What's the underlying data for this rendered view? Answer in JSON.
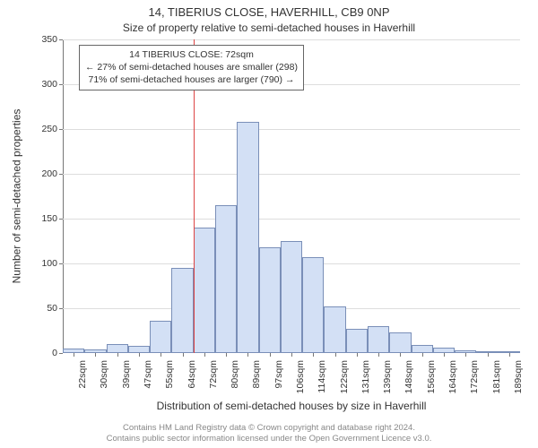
{
  "title_main": "14, TIBERIUS CLOSE, HAVERHILL, CB9 0NP",
  "title_sub": "Size of property relative to semi-detached houses in Haverhill",
  "y_axis_title": "Number of semi-detached properties",
  "x_axis_title": "Distribution of semi-detached houses by size in Haverhill",
  "footer_line1": "Contains HM Land Registry data © Crown copyright and database right 2024.",
  "footer_line2": "Contains public sector information licensed under the Open Government Licence v3.0.",
  "annotation": {
    "line1": "14 TIBERIUS CLOSE: 72sqm",
    "line2": "← 27% of semi-detached houses are smaller (298)",
    "line3": "71% of semi-detached houses are larger (790) →"
  },
  "colors": {
    "bar_fill": "#d3e0f5",
    "bar_stroke": "#7a8fb8",
    "marker_line": "#dd4444",
    "grid": "#dddddd",
    "axis": "#777777",
    "text": "#333333",
    "footer_text": "#888888",
    "background": "#ffffff"
  },
  "chart": {
    "type": "histogram",
    "ylim": [
      0,
      350
    ],
    "ytick_step": 50,
    "y_ticks": [
      0,
      50,
      100,
      150,
      200,
      250,
      300,
      350
    ],
    "marker_x_value": 72,
    "bar_width_ratio": 1.0,
    "title_fontsize": 13,
    "subtitle_fontsize": 12,
    "axis_title_fontsize": 12,
    "tick_fontsize": 10.5,
    "annotation_fontsize": 10.5,
    "categories": [
      "22sqm",
      "30sqm",
      "39sqm",
      "47sqm",
      "55sqm",
      "64sqm",
      "72sqm",
      "80sqm",
      "89sqm",
      "97sqm",
      "106sqm",
      "114sqm",
      "122sqm",
      "131sqm",
      "139sqm",
      "148sqm",
      "156sqm",
      "164sqm",
      "172sqm",
      "181sqm",
      "189sqm"
    ],
    "values": [
      5,
      4,
      10,
      8,
      36,
      95,
      140,
      165,
      258,
      118,
      125,
      107,
      52,
      27,
      30,
      23,
      9,
      6,
      3,
      2,
      2
    ]
  }
}
